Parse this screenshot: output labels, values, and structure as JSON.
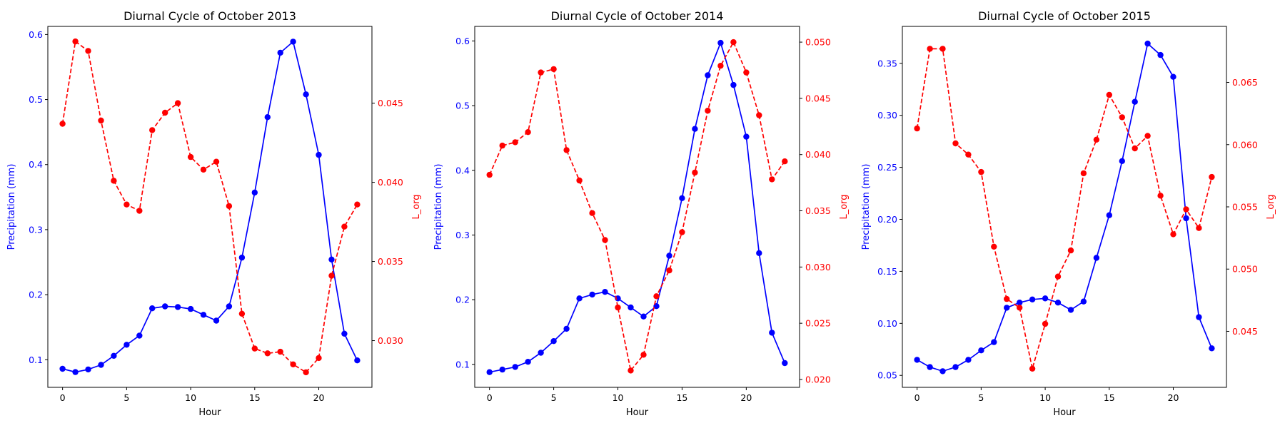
{
  "chart_data": [
    {
      "type": "line",
      "title": "Diurnal Cycle of October 2013",
      "xlabel": "Hour",
      "ylabel": "Precipitation (mm)",
      "y2label": "L_org",
      "x": [
        0,
        1,
        2,
        3,
        4,
        5,
        6,
        7,
        8,
        9,
        10,
        11,
        12,
        13,
        14,
        15,
        16,
        17,
        18,
        19,
        20,
        21,
        22,
        23
      ],
      "xlim": [
        -1.15,
        24.15
      ],
      "xticks": [
        0,
        5,
        10,
        15,
        20
      ],
      "ylim": [
        0.0575,
        0.6125
      ],
      "yticks": [
        "0.1",
        "0.2",
        "0.3",
        "0.4",
        "0.5",
        "0.6"
      ],
      "y2lim": [
        0.02705,
        0.04985
      ],
      "y2ticks": [
        "0.030",
        "0.035",
        "0.040",
        "0.045"
      ],
      "series": [
        {
          "axis": "left",
          "color": "#0000ff",
          "style": "solid",
          "values": [
            0.086,
            0.081,
            0.085,
            0.092,
            0.106,
            0.123,
            0.137,
            0.179,
            0.182,
            0.181,
            0.178,
            0.169,
            0.16,
            0.182,
            0.257,
            0.357,
            0.473,
            0.572,
            0.589,
            0.508,
            0.415,
            0.254,
            0.14,
            0.099
          ]
        },
        {
          "axis": "right",
          "color": "#ff0000",
          "style": "dashed",
          "values": [
            0.0437,
            0.0489,
            0.0483,
            0.0439,
            0.0401,
            0.0386,
            0.0382,
            0.0433,
            0.0444,
            0.045,
            0.0416,
            0.0408,
            0.0413,
            0.0385,
            0.0317,
            0.0295,
            0.0292,
            0.0293,
            0.0285,
            0.028,
            0.0289,
            0.0341,
            0.0372,
            0.0386
          ]
        }
      ]
    },
    {
      "type": "line",
      "title": "Diurnal Cycle of October 2014",
      "xlabel": "Hour",
      "ylabel": "Precipitation (mm)",
      "y2label": "L_org",
      "x": [
        0,
        1,
        2,
        3,
        4,
        5,
        6,
        7,
        8,
        9,
        10,
        11,
        12,
        13,
        14,
        15,
        16,
        17,
        18,
        19,
        20,
        21,
        22,
        23
      ],
      "xlim": [
        -1.15,
        24.15
      ],
      "xticks": [
        0,
        5,
        10,
        15,
        20
      ],
      "ylim": [
        0.0645,
        0.6225
      ],
      "yticks": [
        "0.1",
        "0.2",
        "0.3",
        "0.4",
        "0.5",
        "0.6"
      ],
      "y2lim": [
        0.0193,
        0.0514
      ],
      "y2ticks": [
        "0.020",
        "0.025",
        "0.030",
        "0.035",
        "0.040",
        "0.045",
        "0.050"
      ],
      "series": [
        {
          "axis": "left",
          "color": "#0000ff",
          "style": "solid",
          "values": [
            0.088,
            0.092,
            0.096,
            0.104,
            0.118,
            0.136,
            0.155,
            0.202,
            0.208,
            0.212,
            0.202,
            0.188,
            0.174,
            0.19,
            0.268,
            0.357,
            0.464,
            0.547,
            0.597,
            0.532,
            0.452,
            0.272,
            0.149,
            0.102
          ]
        },
        {
          "axis": "right",
          "color": "#ff0000",
          "style": "dashed",
          "values": [
            0.0382,
            0.0408,
            0.0411,
            0.042,
            0.0473,
            0.0476,
            0.0404,
            0.0377,
            0.0348,
            0.0324,
            0.0264,
            0.0208,
            0.0222,
            0.0274,
            0.0297,
            0.0331,
            0.0384,
            0.0439,
            0.0479,
            0.05,
            0.0473,
            0.0435,
            0.0378,
            0.0394
          ]
        }
      ]
    },
    {
      "type": "line",
      "title": "Diurnal Cycle of October 2015",
      "xlabel": "Hour",
      "ylabel": "Precipitation (mm)",
      "y2label": "L_org",
      "x": [
        0,
        1,
        2,
        3,
        4,
        5,
        6,
        7,
        8,
        9,
        10,
        11,
        12,
        13,
        14,
        15,
        16,
        17,
        18,
        19,
        20,
        21,
        22,
        23
      ],
      "xlim": [
        -1.15,
        24.15
      ],
      "xticks": [
        0,
        5,
        10,
        15,
        20
      ],
      "ylim": [
        0.0385,
        0.3855
      ],
      "yticks": [
        "0.05",
        "0.10",
        "0.15",
        "0.20",
        "0.25",
        "0.30",
        "0.35"
      ],
      "y2lim": [
        0.0405,
        0.0695
      ],
      "y2ticks": [
        "0.045",
        "0.050",
        "0.055",
        "0.060",
        "0.065"
      ],
      "series": [
        {
          "axis": "left",
          "color": "#0000ff",
          "style": "solid",
          "values": [
            0.065,
            0.058,
            0.054,
            0.058,
            0.065,
            0.074,
            0.082,
            0.115,
            0.12,
            0.123,
            0.124,
            0.12,
            0.113,
            0.121,
            0.163,
            0.204,
            0.256,
            0.313,
            0.369,
            0.358,
            0.337,
            0.201,
            0.106,
            0.076
          ]
        },
        {
          "axis": "right",
          "color": "#ff0000",
          "style": "dashed",
          "values": [
            0.0613,
            0.0677,
            0.0677,
            0.0601,
            0.0592,
            0.0578,
            0.0518,
            0.0476,
            0.0469,
            0.042,
            0.0456,
            0.0494,
            0.0515,
            0.0577,
            0.0604,
            0.064,
            0.0622,
            0.0597,
            0.0607,
            0.0559,
            0.0528,
            0.0548,
            0.0533,
            0.0574
          ]
        }
      ]
    }
  ]
}
